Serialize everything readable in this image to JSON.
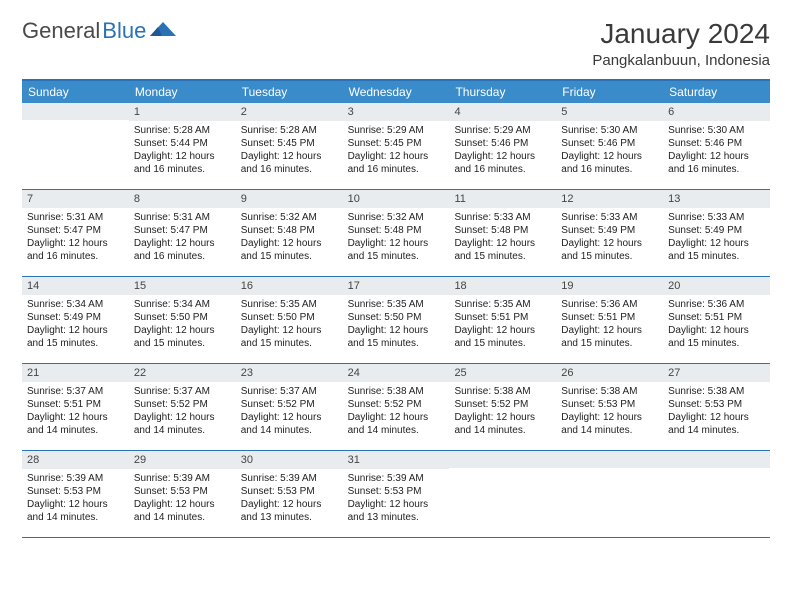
{
  "logo": {
    "text1": "General",
    "text2": "Blue"
  },
  "title": "January 2024",
  "location": "Pangkalanbuun, Indonesia",
  "colors": {
    "header_bar": "#3a8bc9",
    "border": "#2a72b5",
    "daynum_bg": "#e8ecef",
    "text": "#222222",
    "logo_gray": "#4a4a4a",
    "logo_blue": "#2a72b5"
  },
  "daysOfWeek": [
    "Sunday",
    "Monday",
    "Tuesday",
    "Wednesday",
    "Thursday",
    "Friday",
    "Saturday"
  ],
  "weeks": [
    [
      null,
      {
        "n": "1",
        "sunrise": "5:28 AM",
        "sunset": "5:44 PM",
        "daylight": "12 hours and 16 minutes."
      },
      {
        "n": "2",
        "sunrise": "5:28 AM",
        "sunset": "5:45 PM",
        "daylight": "12 hours and 16 minutes."
      },
      {
        "n": "3",
        "sunrise": "5:29 AM",
        "sunset": "5:45 PM",
        "daylight": "12 hours and 16 minutes."
      },
      {
        "n": "4",
        "sunrise": "5:29 AM",
        "sunset": "5:46 PM",
        "daylight": "12 hours and 16 minutes."
      },
      {
        "n": "5",
        "sunrise": "5:30 AM",
        "sunset": "5:46 PM",
        "daylight": "12 hours and 16 minutes."
      },
      {
        "n": "6",
        "sunrise": "5:30 AM",
        "sunset": "5:46 PM",
        "daylight": "12 hours and 16 minutes."
      }
    ],
    [
      {
        "n": "7",
        "sunrise": "5:31 AM",
        "sunset": "5:47 PM",
        "daylight": "12 hours and 16 minutes."
      },
      {
        "n": "8",
        "sunrise": "5:31 AM",
        "sunset": "5:47 PM",
        "daylight": "12 hours and 16 minutes."
      },
      {
        "n": "9",
        "sunrise": "5:32 AM",
        "sunset": "5:48 PM",
        "daylight": "12 hours and 15 minutes."
      },
      {
        "n": "10",
        "sunrise": "5:32 AM",
        "sunset": "5:48 PM",
        "daylight": "12 hours and 15 minutes."
      },
      {
        "n": "11",
        "sunrise": "5:33 AM",
        "sunset": "5:48 PM",
        "daylight": "12 hours and 15 minutes."
      },
      {
        "n": "12",
        "sunrise": "5:33 AM",
        "sunset": "5:49 PM",
        "daylight": "12 hours and 15 minutes."
      },
      {
        "n": "13",
        "sunrise": "5:33 AM",
        "sunset": "5:49 PM",
        "daylight": "12 hours and 15 minutes."
      }
    ],
    [
      {
        "n": "14",
        "sunrise": "5:34 AM",
        "sunset": "5:49 PM",
        "daylight": "12 hours and 15 minutes."
      },
      {
        "n": "15",
        "sunrise": "5:34 AM",
        "sunset": "5:50 PM",
        "daylight": "12 hours and 15 minutes."
      },
      {
        "n": "16",
        "sunrise": "5:35 AM",
        "sunset": "5:50 PM",
        "daylight": "12 hours and 15 minutes."
      },
      {
        "n": "17",
        "sunrise": "5:35 AM",
        "sunset": "5:50 PM",
        "daylight": "12 hours and 15 minutes."
      },
      {
        "n": "18",
        "sunrise": "5:35 AM",
        "sunset": "5:51 PM",
        "daylight": "12 hours and 15 minutes."
      },
      {
        "n": "19",
        "sunrise": "5:36 AM",
        "sunset": "5:51 PM",
        "daylight": "12 hours and 15 minutes."
      },
      {
        "n": "20",
        "sunrise": "5:36 AM",
        "sunset": "5:51 PM",
        "daylight": "12 hours and 15 minutes."
      }
    ],
    [
      {
        "n": "21",
        "sunrise": "5:37 AM",
        "sunset": "5:51 PM",
        "daylight": "12 hours and 14 minutes."
      },
      {
        "n": "22",
        "sunrise": "5:37 AM",
        "sunset": "5:52 PM",
        "daylight": "12 hours and 14 minutes."
      },
      {
        "n": "23",
        "sunrise": "5:37 AM",
        "sunset": "5:52 PM",
        "daylight": "12 hours and 14 minutes."
      },
      {
        "n": "24",
        "sunrise": "5:38 AM",
        "sunset": "5:52 PM",
        "daylight": "12 hours and 14 minutes."
      },
      {
        "n": "25",
        "sunrise": "5:38 AM",
        "sunset": "5:52 PM",
        "daylight": "12 hours and 14 minutes."
      },
      {
        "n": "26",
        "sunrise": "5:38 AM",
        "sunset": "5:53 PM",
        "daylight": "12 hours and 14 minutes."
      },
      {
        "n": "27",
        "sunrise": "5:38 AM",
        "sunset": "5:53 PM",
        "daylight": "12 hours and 14 minutes."
      }
    ],
    [
      {
        "n": "28",
        "sunrise": "5:39 AM",
        "sunset": "5:53 PM",
        "daylight": "12 hours and 14 minutes."
      },
      {
        "n": "29",
        "sunrise": "5:39 AM",
        "sunset": "5:53 PM",
        "daylight": "12 hours and 14 minutes."
      },
      {
        "n": "30",
        "sunrise": "5:39 AM",
        "sunset": "5:53 PM",
        "daylight": "12 hours and 13 minutes."
      },
      {
        "n": "31",
        "sunrise": "5:39 AM",
        "sunset": "5:53 PM",
        "daylight": "12 hours and 13 minutes."
      },
      null,
      null,
      null
    ]
  ],
  "labels": {
    "sunrise": "Sunrise:",
    "sunset": "Sunset:",
    "daylight": "Daylight:"
  }
}
